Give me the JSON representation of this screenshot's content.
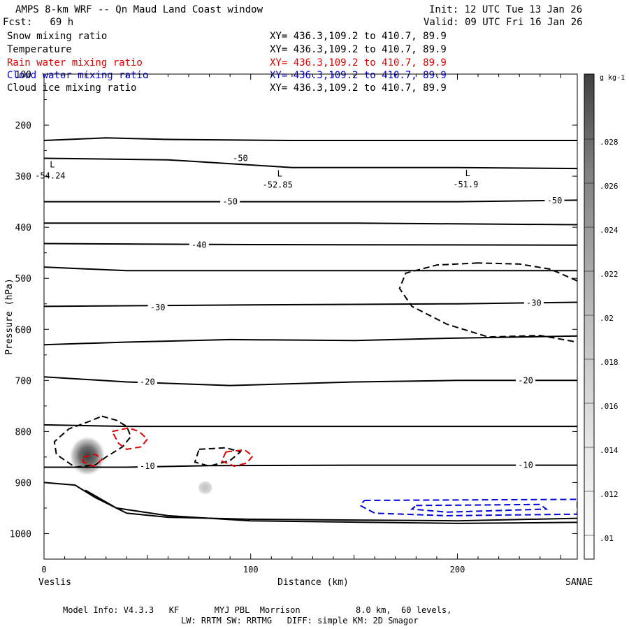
{
  "header": {
    "title": "AMPS 8-km WRF -- Qn Maud Land Coast window",
    "init": "Init: 12 UTC Tue 13 Jan 26",
    "fcst": "Fcst:   69 h",
    "valid": "Valid: 09 UTC Fri 16 Jan 26"
  },
  "fields": [
    {
      "name": "Snow mixing ratio",
      "xy": "XY= 436.3,109.2 to 410.7, 89.9",
      "color": "#000000"
    },
    {
      "name": "Temperature",
      "xy": "XY= 436.3,109.2 to 410.7, 89.9",
      "color": "#000000"
    },
    {
      "name": "Rain water mixing ratio",
      "xy": "XY= 436.3,109.2 to 410.7, 89.9",
      "color": "#e00000"
    },
    {
      "name": "Cloud water mixing ratio",
      "xy": "XY= 436.3,109.2 to 410.7, 89.9",
      "color": "#0000e0"
    },
    {
      "name": "Cloud ice mixing ratio",
      "xy": "XY= 436.3,109.2 to 410.7, 89.9",
      "color": "#000000"
    }
  ],
  "footer": {
    "model_info": "Model Info: V4.3.3   KF       MYJ PBL  Morrison           8.0 km,  60 levels,",
    "physics": "LW: RRTM SW: RRTMG   DIFF: simple KM: 2D Smagor"
  },
  "chart_data": {
    "type": "contour",
    "title": "AMPS 8-km WRF -- Qn Maud Land Coast window",
    "xlabel": "Distance (km)",
    "ylabel": "Pressure (hPa)",
    "xlim": [
      0,
      258
    ],
    "ylim": [
      1050,
      100
    ],
    "x_ticks": [
      0,
      100,
      200
    ],
    "y_ticks": [
      100,
      200,
      300,
      400,
      500,
      600,
      700,
      800,
      900,
      1000
    ],
    "x_endpoints": {
      "left": "Veslis",
      "right": "SANAE"
    },
    "colorbar": {
      "unit": "g kg-1",
      "labels": [
        ".01",
        ".012",
        ".014",
        ".016",
        ".018",
        ".02",
        ".022",
        ".024",
        ".026",
        ".028"
      ]
    },
    "temperature_labels": [
      {
        "text": "-50",
        "x": 95,
        "p": 265
      },
      {
        "text": "-50",
        "x": 90,
        "p": 350
      },
      {
        "text": "-50",
        "x": 247,
        "p": 348
      },
      {
        "text": "-40",
        "x": 75,
        "p": 435
      },
      {
        "text": "-30",
        "x": 55,
        "p": 557
      },
      {
        "text": "-30",
        "x": 237,
        "p": 548
      },
      {
        "text": "-20",
        "x": 50,
        "p": 703
      },
      {
        "text": "-20",
        "x": 233,
        "p": 700
      },
      {
        "text": "-10",
        "x": 50,
        "p": 868
      },
      {
        "text": "-10",
        "x": 233,
        "p": 866
      }
    ],
    "extrema": [
      {
        "mark": "L",
        "value": "-54.24",
        "x": 3,
        "p": 288
      },
      {
        "mark": "L",
        "value": "-52.85",
        "x": 113,
        "p": 306
      },
      {
        "mark": "L",
        "value": "-51.9",
        "x": 204,
        "p": 305
      }
    ],
    "isotherms": [
      [
        [
          0,
          230
        ],
        [
          30,
          225
        ],
        [
          60,
          228
        ],
        [
          120,
          230
        ],
        [
          258,
          230
        ]
      ],
      [
        [
          0,
          265
        ],
        [
          60,
          268
        ],
        [
          120,
          283
        ],
        [
          200,
          283
        ],
        [
          258,
          285
        ]
      ],
      [
        [
          0,
          350
        ],
        [
          100,
          350
        ],
        [
          200,
          350
        ],
        [
          258,
          347
        ]
      ],
      [
        [
          0,
          392
        ],
        [
          80,
          392
        ],
        [
          150,
          392
        ],
        [
          258,
          395
        ]
      ],
      [
        [
          0,
          432
        ],
        [
          100,
          434
        ],
        [
          258,
          435
        ]
      ],
      [
        [
          0,
          478
        ],
        [
          40,
          485
        ],
        [
          100,
          485
        ],
        [
          180,
          485
        ],
        [
          258,
          485
        ]
      ],
      [
        [
          0,
          555
        ],
        [
          100,
          552
        ],
        [
          200,
          550
        ],
        [
          258,
          547
        ]
      ],
      [
        [
          0,
          630
        ],
        [
          40,
          625
        ],
        [
          90,
          620
        ],
        [
          150,
          622
        ],
        [
          200,
          617
        ],
        [
          258,
          613
        ]
      ],
      [
        [
          0,
          693
        ],
        [
          40,
          703
        ],
        [
          90,
          710
        ],
        [
          150,
          703
        ],
        [
          200,
          700
        ],
        [
          258,
          700
        ]
      ],
      [
        [
          0,
          787
        ],
        [
          40,
          790
        ],
        [
          100,
          790
        ],
        [
          200,
          790
        ],
        [
          258,
          790
        ]
      ],
      [
        [
          0,
          870
        ],
        [
          40,
          870
        ],
        [
          80,
          867
        ],
        [
          150,
          866
        ],
        [
          258,
          866
        ]
      ],
      [
        [
          0,
          900
        ],
        [
          15,
          905
        ],
        [
          25,
          930
        ],
        [
          40,
          960
        ],
        [
          60,
          968
        ],
        [
          100,
          972
        ],
        [
          200,
          975
        ],
        [
          258,
          970
        ]
      ],
      [
        [
          20,
          915
        ],
        [
          35,
          950
        ],
        [
          60,
          965
        ],
        [
          100,
          975
        ],
        [
          200,
          980
        ],
        [
          258,
          978
        ]
      ]
    ],
    "snow_patches": [
      {
        "x": 21,
        "p": 848,
        "rx_km": 9,
        "ry_hpa": 40,
        "max": 0.028
      },
      {
        "x": 78,
        "p": 910,
        "rx_km": 4,
        "ry_hpa": 15,
        "max": 0.013
      }
    ],
    "cloud_ice_contours": [
      [
        [
          28,
          770
        ],
        [
          35,
          778
        ],
        [
          40,
          790
        ],
        [
          42,
          810
        ],
        [
          38,
          830
        ],
        [
          30,
          850
        ],
        [
          25,
          865
        ],
        [
          15,
          870
        ],
        [
          6,
          845
        ],
        [
          5,
          820
        ],
        [
          12,
          795
        ],
        [
          22,
          780
        ],
        [
          28,
          770
        ]
      ],
      [
        [
          75,
          835
        ],
        [
          88,
          832
        ],
        [
          95,
          840
        ],
        [
          90,
          857
        ],
        [
          80,
          868
        ],
        [
          73,
          860
        ],
        [
          75,
          835
        ]
      ],
      [
        [
          210,
          470
        ],
        [
          190,
          474
        ],
        [
          175,
          490
        ],
        [
          172,
          520
        ],
        [
          178,
          555
        ],
        [
          195,
          590
        ],
        [
          215,
          615
        ],
        [
          240,
          612
        ],
        [
          258,
          625
        ]
      ],
      [
        [
          258,
          505
        ],
        [
          245,
          482
        ],
        [
          230,
          472
        ],
        [
          210,
          470
        ]
      ]
    ],
    "rain_contours": [
      [
        [
          33,
          800
        ],
        [
          41,
          793
        ],
        [
          46,
          800
        ],
        [
          50,
          815
        ],
        [
          47,
          830
        ],
        [
          40,
          835
        ],
        [
          36,
          823
        ],
        [
          33,
          800
        ]
      ],
      [
        [
          19,
          850
        ],
        [
          25,
          845
        ],
        [
          28,
          855
        ],
        [
          24,
          868
        ],
        [
          19,
          860
        ],
        [
          19,
          850
        ]
      ],
      [
        [
          88,
          840
        ],
        [
          97,
          836
        ],
        [
          101,
          848
        ],
        [
          98,
          862
        ],
        [
          92,
          868
        ],
        [
          86,
          858
        ],
        [
          88,
          840
        ]
      ]
    ],
    "cloud_water_contours": [
      [
        [
          155,
          935
        ],
        [
          258,
          933
        ],
        [
          258,
          962
        ],
        [
          195,
          965
        ],
        [
          160,
          960
        ],
        [
          153,
          945
        ],
        [
          155,
          935
        ]
      ],
      [
        [
          180,
          945
        ],
        [
          240,
          943
        ],
        [
          243,
          952
        ],
        [
          195,
          958
        ],
        [
          178,
          952
        ],
        [
          180,
          945
        ]
      ]
    ]
  }
}
